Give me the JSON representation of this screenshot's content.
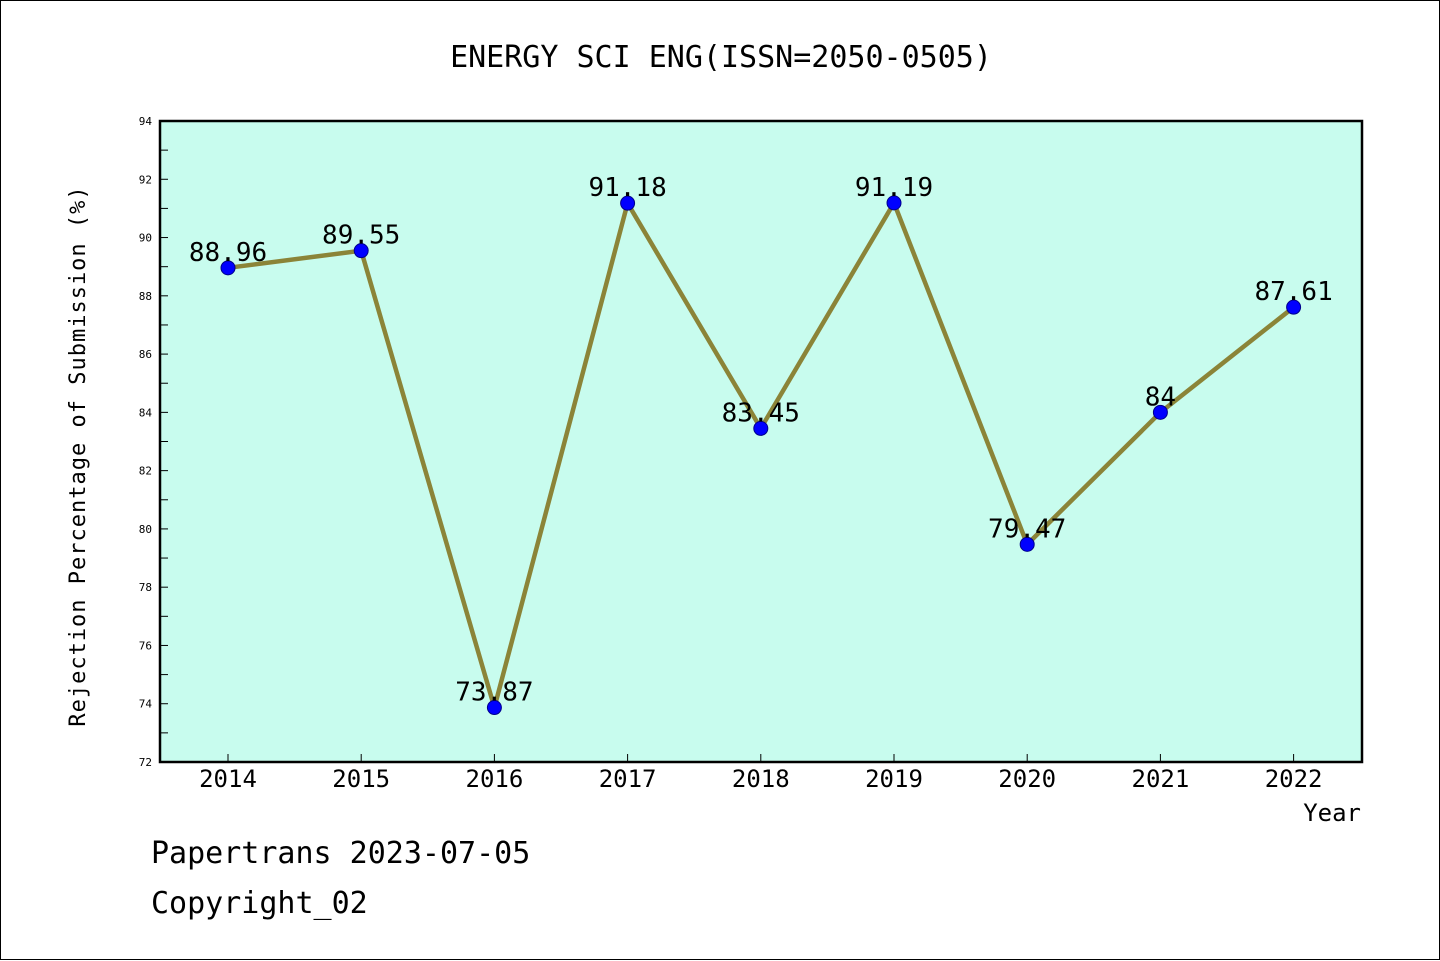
{
  "chart_data": {
    "type": "line",
    "title": "ENERGY SCI ENG(ISSN=2050-0505)",
    "xlabel": "Year",
    "ylabel": "Rejection Percentage of Submission (%)",
    "categories": [
      "2014",
      "2015",
      "2016",
      "2017",
      "2018",
      "2019",
      "2020",
      "2021",
      "2022"
    ],
    "values": [
      88.96,
      89.55,
      73.87,
      91.18,
      83.45,
      91.19,
      79.47,
      84,
      87.61
    ],
    "data_labels": [
      "88.96",
      "89.55",
      "73.87",
      "91.18",
      "83.45",
      "91.19",
      "79.47",
      "84",
      "87.61"
    ],
    "ylim": [
      72,
      94
    ],
    "yticks": [
      "72",
      "74",
      "76",
      "78",
      "80",
      "82",
      "84",
      "86",
      "88",
      "90",
      "92",
      "94"
    ],
    "grid": false,
    "legend": "none",
    "colors": {
      "plot_background": "#c8fcee",
      "line": "#8b8438",
      "marker": "#0000ff"
    }
  },
  "footer": {
    "line1": "Papertrans 2023-07-05",
    "line2": "Copyright_02"
  }
}
